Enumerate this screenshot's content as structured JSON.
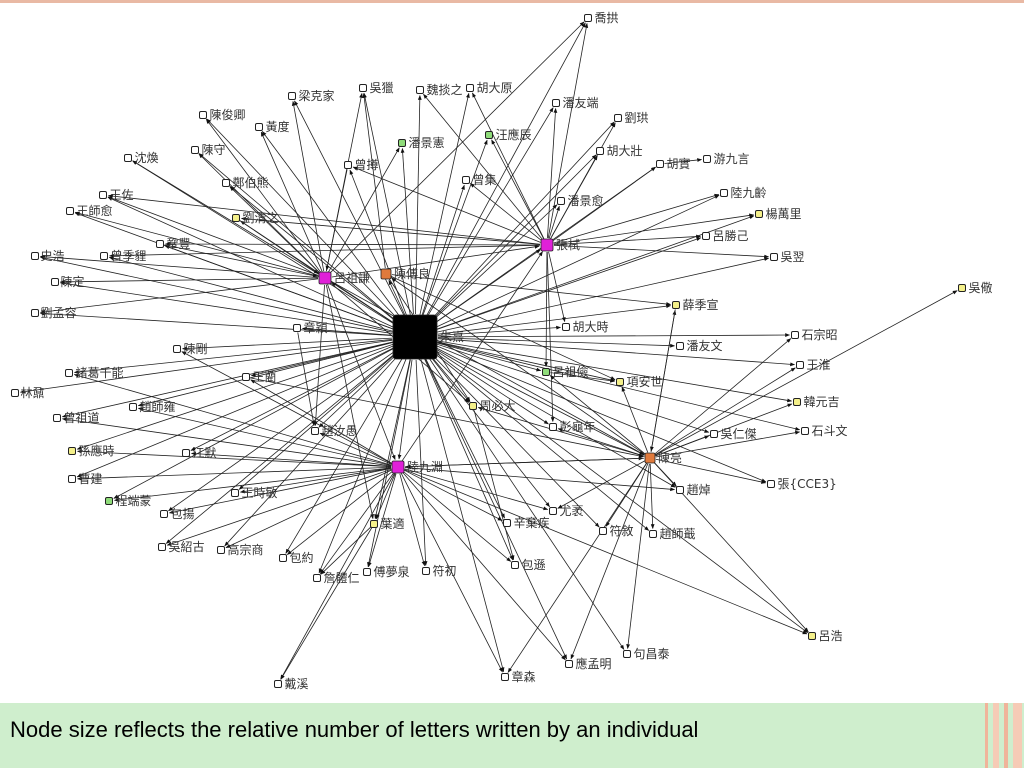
{
  "caption": "Node size reflects the relative number of letters written by an individual",
  "colors": {
    "hub": "#000000",
    "magenta": "#e020d8",
    "orange": "#e07a3c",
    "yellow": "#f4f08a",
    "green": "#8fdc7a",
    "plain": "#ffffff",
    "edge": "#222222",
    "caption_bg": "#cfeecd",
    "accent_stripe": "#f0b49a"
  },
  "nodes": [
    {
      "id": "n1",
      "label": "朱熹",
      "color": "hub",
      "size": "hub"
    },
    {
      "id": "n2",
      "label": "呂祖謙",
      "color": "magenta",
      "size": "large"
    },
    {
      "id": "n3",
      "label": "張栻",
      "color": "magenta",
      "size": "large"
    },
    {
      "id": "n4",
      "label": "陸九淵",
      "color": "magenta",
      "size": "large"
    },
    {
      "id": "n5",
      "label": "陳傅良",
      "color": "orange",
      "size": "medium"
    },
    {
      "id": "n6",
      "label": "陳亮",
      "color": "orange",
      "size": "medium"
    },
    {
      "id": "n7",
      "label": "喬拱",
      "color": "plain",
      "size": "small"
    },
    {
      "id": "n8",
      "label": "吳獵",
      "color": "plain",
      "size": "small"
    },
    {
      "id": "n9",
      "label": "魏掞之",
      "color": "plain",
      "size": "small"
    },
    {
      "id": "n10",
      "label": "胡大原",
      "color": "plain",
      "size": "small"
    },
    {
      "id": "n11",
      "label": "梁克家",
      "color": "plain",
      "size": "small"
    },
    {
      "id": "n12",
      "label": "潘友端",
      "color": "plain",
      "size": "small"
    },
    {
      "id": "n13",
      "label": "劉珙",
      "color": "plain",
      "size": "small"
    },
    {
      "id": "n14",
      "label": "陳俊卿",
      "color": "plain",
      "size": "small"
    },
    {
      "id": "n15",
      "label": "黃度",
      "color": "plain",
      "size": "small"
    },
    {
      "id": "n16",
      "label": "潘景憲",
      "color": "green",
      "size": "small"
    },
    {
      "id": "n17",
      "label": "汪應辰",
      "color": "green",
      "size": "small"
    },
    {
      "id": "n18",
      "label": "胡大壯",
      "color": "plain",
      "size": "small"
    },
    {
      "id": "n19",
      "label": "陳守",
      "color": "plain",
      "size": "small"
    },
    {
      "id": "n20",
      "label": "沈煥",
      "color": "plain",
      "size": "small"
    },
    {
      "id": "n21",
      "label": "曾撙",
      "color": "plain",
      "size": "small"
    },
    {
      "id": "n22",
      "label": "胡實",
      "color": "plain",
      "size": "small"
    },
    {
      "id": "n23",
      "label": "游九言",
      "color": "plain",
      "size": "small"
    },
    {
      "id": "n24",
      "label": "鄭伯熊",
      "color": "plain",
      "size": "small"
    },
    {
      "id": "n25",
      "label": "曾集",
      "color": "plain",
      "size": "small"
    },
    {
      "id": "n26",
      "label": "王佐",
      "color": "plain",
      "size": "small"
    },
    {
      "id": "n27",
      "label": "潘景愈",
      "color": "plain",
      "size": "small"
    },
    {
      "id": "n28",
      "label": "陸九齡",
      "color": "plain",
      "size": "small"
    },
    {
      "id": "n29",
      "label": "王師愈",
      "color": "plain",
      "size": "small"
    },
    {
      "id": "n30",
      "label": "劉清之",
      "color": "yellow",
      "size": "small"
    },
    {
      "id": "n31",
      "label": "楊萬里",
      "color": "yellow",
      "size": "small"
    },
    {
      "id": "n32",
      "label": "呂勝己",
      "color": "plain",
      "size": "small"
    },
    {
      "id": "n33",
      "label": "史浩",
      "color": "plain",
      "size": "small"
    },
    {
      "id": "n34",
      "label": "曾季貍",
      "color": "plain",
      "size": "small"
    },
    {
      "id": "n35",
      "label": "鞏豐",
      "color": "plain",
      "size": "small"
    },
    {
      "id": "n36",
      "label": "吳翌",
      "color": "plain",
      "size": "small"
    },
    {
      "id": "n37",
      "label": "陳定",
      "color": "plain",
      "size": "small"
    },
    {
      "id": "n38",
      "label": "吳儆",
      "color": "yellow",
      "size": "small"
    },
    {
      "id": "n39",
      "label": "薛季宣",
      "color": "yellow",
      "size": "small"
    },
    {
      "id": "n40",
      "label": "劉孟容",
      "color": "plain",
      "size": "small"
    },
    {
      "id": "n41",
      "label": "石宗昭",
      "color": "plain",
      "size": "small"
    },
    {
      "id": "n42",
      "label": "章穎",
      "color": "plain",
      "size": "small"
    },
    {
      "id": "n43",
      "label": "胡大時",
      "color": "plain",
      "size": "small"
    },
    {
      "id": "n44",
      "label": "陳剛",
      "color": "plain",
      "size": "small"
    },
    {
      "id": "n45",
      "label": "潘友文",
      "color": "plain",
      "size": "small"
    },
    {
      "id": "n46",
      "label": "王淮",
      "color": "plain",
      "size": "small"
    },
    {
      "id": "n47",
      "label": "諸葛千能",
      "color": "plain",
      "size": "small"
    },
    {
      "id": "n48",
      "label": "王藺",
      "color": "plain",
      "size": "small"
    },
    {
      "id": "n49",
      "label": "呂祖儉",
      "color": "green",
      "size": "small"
    },
    {
      "id": "n50",
      "label": "項安世",
      "color": "yellow",
      "size": "small"
    },
    {
      "id": "n51",
      "label": "林鼐",
      "color": "plain",
      "size": "small"
    },
    {
      "id": "n52",
      "label": "韓元吉",
      "color": "yellow",
      "size": "small"
    },
    {
      "id": "n53",
      "label": "周必大",
      "color": "yellow",
      "size": "small"
    },
    {
      "id": "n54",
      "label": "曾祖道",
      "color": "plain",
      "size": "small"
    },
    {
      "id": "n55",
      "label": "趙師雍",
      "color": "plain",
      "size": "small"
    },
    {
      "id": "n56",
      "label": "彭龜年",
      "color": "plain",
      "size": "small"
    },
    {
      "id": "n57",
      "label": "石斗文",
      "color": "plain",
      "size": "small"
    },
    {
      "id": "n58",
      "label": "趙汝愚",
      "color": "plain",
      "size": "small"
    },
    {
      "id": "n59",
      "label": "吳仁傑",
      "color": "plain",
      "size": "small"
    },
    {
      "id": "n60",
      "label": "孫應時",
      "color": "yellow",
      "size": "small"
    },
    {
      "id": "n61",
      "label": "江默",
      "color": "plain",
      "size": "small"
    },
    {
      "id": "n62",
      "label": "曹建",
      "color": "plain",
      "size": "small"
    },
    {
      "id": "n63",
      "label": "張{CCE3}",
      "color": "plain",
      "size": "small"
    },
    {
      "id": "n64",
      "label": "趙焯",
      "color": "plain",
      "size": "small"
    },
    {
      "id": "n65",
      "label": "王時敏",
      "color": "plain",
      "size": "small"
    },
    {
      "id": "n66",
      "label": "程端蒙",
      "color": "green",
      "size": "small"
    },
    {
      "id": "n67",
      "label": "尤袤",
      "color": "plain",
      "size": "small"
    },
    {
      "id": "n68",
      "label": "包揚",
      "color": "plain",
      "size": "small"
    },
    {
      "id": "n69",
      "label": "葉適",
      "color": "yellow",
      "size": "small"
    },
    {
      "id": "n70",
      "label": "辛棄疾",
      "color": "plain",
      "size": "small"
    },
    {
      "id": "n71",
      "label": "符敘",
      "color": "plain",
      "size": "small"
    },
    {
      "id": "n72",
      "label": "趙師蕺",
      "color": "plain",
      "size": "small"
    },
    {
      "id": "n73",
      "label": "吳紹古",
      "color": "plain",
      "size": "small"
    },
    {
      "id": "n74",
      "label": "高宗商",
      "color": "plain",
      "size": "small"
    },
    {
      "id": "n75",
      "label": "包約",
      "color": "plain",
      "size": "small"
    },
    {
      "id": "n76",
      "label": "傅夢泉",
      "color": "plain",
      "size": "small"
    },
    {
      "id": "n77",
      "label": "符初",
      "color": "plain",
      "size": "small"
    },
    {
      "id": "n78",
      "label": "包遜",
      "color": "plain",
      "size": "small"
    },
    {
      "id": "n79",
      "label": "詹體仁",
      "color": "plain",
      "size": "small"
    },
    {
      "id": "n80",
      "label": "呂浩",
      "color": "yellow",
      "size": "small"
    },
    {
      "id": "n81",
      "label": "句昌泰",
      "color": "plain",
      "size": "small"
    },
    {
      "id": "n82",
      "label": "應孟明",
      "color": "plain",
      "size": "small"
    },
    {
      "id": "n83",
      "label": "章森",
      "color": "plain",
      "size": "small"
    },
    {
      "id": "n84",
      "label": "戴溪",
      "color": "plain",
      "size": "small"
    }
  ],
  "edges": [
    [
      "n1",
      "n7"
    ],
    [
      "n1",
      "n8"
    ],
    [
      "n1",
      "n9"
    ],
    [
      "n1",
      "n10"
    ],
    [
      "n1",
      "n11"
    ],
    [
      "n1",
      "n12"
    ],
    [
      "n1",
      "n13"
    ],
    [
      "n1",
      "n14"
    ],
    [
      "n1",
      "n15"
    ],
    [
      "n1",
      "n16"
    ],
    [
      "n1",
      "n17"
    ],
    [
      "n1",
      "n18"
    ],
    [
      "n1",
      "n19"
    ],
    [
      "n1",
      "n20"
    ],
    [
      "n1",
      "n21"
    ],
    [
      "n1",
      "n22"
    ],
    [
      "n1",
      "n24"
    ],
    [
      "n1",
      "n25"
    ],
    [
      "n1",
      "n26"
    ],
    [
      "n1",
      "n27"
    ],
    [
      "n1",
      "n28"
    ],
    [
      "n1",
      "n29"
    ],
    [
      "n1",
      "n30"
    ],
    [
      "n1",
      "n31"
    ],
    [
      "n1",
      "n32"
    ],
    [
      "n1",
      "n33"
    ],
    [
      "n1",
      "n34"
    ],
    [
      "n1",
      "n35"
    ],
    [
      "n1",
      "n36"
    ],
    [
      "n1",
      "n37"
    ],
    [
      "n1",
      "n39"
    ],
    [
      "n1",
      "n40"
    ],
    [
      "n1",
      "n41"
    ],
    [
      "n1",
      "n42"
    ],
    [
      "n1",
      "n43"
    ],
    [
      "n1",
      "n44"
    ],
    [
      "n1",
      "n45"
    ],
    [
      "n1",
      "n46"
    ],
    [
      "n1",
      "n47"
    ],
    [
      "n1",
      "n48"
    ],
    [
      "n1",
      "n49"
    ],
    [
      "n1",
      "n50"
    ],
    [
      "n1",
      "n51"
    ],
    [
      "n1",
      "n52"
    ],
    [
      "n1",
      "n53"
    ],
    [
      "n1",
      "n54"
    ],
    [
      "n1",
      "n55"
    ],
    [
      "n1",
      "n56"
    ],
    [
      "n1",
      "n57"
    ],
    [
      "n1",
      "n58"
    ],
    [
      "n1",
      "n59"
    ],
    [
      "n1",
      "n60"
    ],
    [
      "n1",
      "n61"
    ],
    [
      "n1",
      "n62"
    ],
    [
      "n1",
      "n63"
    ],
    [
      "n1",
      "n64"
    ],
    [
      "n1",
      "n65"
    ],
    [
      "n1",
      "n66"
    ],
    [
      "n1",
      "n67"
    ],
    [
      "n1",
      "n68"
    ],
    [
      "n1",
      "n69"
    ],
    [
      "n1",
      "n70"
    ],
    [
      "n1",
      "n71"
    ],
    [
      "n1",
      "n72"
    ],
    [
      "n1",
      "n73"
    ],
    [
      "n1",
      "n74"
    ],
    [
      "n1",
      "n75"
    ],
    [
      "n1",
      "n76"
    ],
    [
      "n1",
      "n77"
    ],
    [
      "n1",
      "n78"
    ],
    [
      "n1",
      "n79"
    ],
    [
      "n1",
      "n80"
    ],
    [
      "n1",
      "n81"
    ],
    [
      "n1",
      "n82"
    ],
    [
      "n1",
      "n83"
    ],
    [
      "n1",
      "n2"
    ],
    [
      "n1",
      "n3"
    ],
    [
      "n1",
      "n4"
    ],
    [
      "n1",
      "n5"
    ],
    [
      "n1",
      "n6"
    ],
    [
      "n2",
      "n8"
    ],
    [
      "n2",
      "n11"
    ],
    [
      "n2",
      "n14"
    ],
    [
      "n2",
      "n15"
    ],
    [
      "n2",
      "n19"
    ],
    [
      "n2",
      "n20"
    ],
    [
      "n2",
      "n24"
    ],
    [
      "n2",
      "n26"
    ],
    [
      "n2",
      "n29"
    ],
    [
      "n2",
      "n33"
    ],
    [
      "n2",
      "n37"
    ],
    [
      "n2",
      "n40"
    ],
    [
      "n2",
      "n16"
    ],
    [
      "n2",
      "n4"
    ],
    [
      "n2",
      "n3"
    ],
    [
      "n2",
      "n6"
    ],
    [
      "n2",
      "n58"
    ],
    [
      "n2",
      "n69"
    ],
    [
      "n2",
      "n53"
    ],
    [
      "n2",
      "n7"
    ],
    [
      "n3",
      "n12"
    ],
    [
      "n3",
      "n13"
    ],
    [
      "n3",
      "n17"
    ],
    [
      "n3",
      "n18"
    ],
    [
      "n3",
      "n22"
    ],
    [
      "n3",
      "n27"
    ],
    [
      "n3",
      "n28"
    ],
    [
      "n3",
      "n31"
    ],
    [
      "n3",
      "n32"
    ],
    [
      "n3",
      "n36"
    ],
    [
      "n3",
      "n43"
    ],
    [
      "n3",
      "n49"
    ],
    [
      "n3",
      "n9"
    ],
    [
      "n3",
      "n10"
    ],
    [
      "n3",
      "n25"
    ],
    [
      "n3",
      "n21"
    ],
    [
      "n3",
      "n35"
    ],
    [
      "n3",
      "n34"
    ],
    [
      "n3",
      "n26"
    ],
    [
      "n3",
      "n30"
    ],
    [
      "n3",
      "n56"
    ],
    [
      "n3",
      "n7"
    ],
    [
      "n4",
      "n60"
    ],
    [
      "n4",
      "n61"
    ],
    [
      "n4",
      "n62"
    ],
    [
      "n4",
      "n65"
    ],
    [
      "n4",
      "n66"
    ],
    [
      "n4",
      "n68"
    ],
    [
      "n4",
      "n69"
    ],
    [
      "n4",
      "n73"
    ],
    [
      "n4",
      "n74"
    ],
    [
      "n4",
      "n75"
    ],
    [
      "n4",
      "n76"
    ],
    [
      "n4",
      "n77"
    ],
    [
      "n4",
      "n78"
    ],
    [
      "n4",
      "n79"
    ],
    [
      "n4",
      "n82"
    ],
    [
      "n4",
      "n83"
    ],
    [
      "n4",
      "n70"
    ],
    [
      "n4",
      "n67"
    ],
    [
      "n4",
      "n64"
    ],
    [
      "n4",
      "n44"
    ],
    [
      "n4",
      "n47"
    ],
    [
      "n4",
      "n54"
    ],
    [
      "n4",
      "n55"
    ],
    [
      "n4",
      "n58"
    ],
    [
      "n4",
      "n3"
    ],
    [
      "n4",
      "n6"
    ],
    [
      "n4",
      "n80"
    ],
    [
      "n4",
      "n84"
    ],
    [
      "n4",
      "n48"
    ],
    [
      "n6",
      "n38"
    ],
    [
      "n6",
      "n41"
    ],
    [
      "n6",
      "n46"
    ],
    [
      "n6",
      "n52"
    ],
    [
      "n6",
      "n57"
    ],
    [
      "n6",
      "n59"
    ],
    [
      "n6",
      "n63"
    ],
    [
      "n6",
      "n64"
    ],
    [
      "n6",
      "n71"
    ],
    [
      "n6",
      "n72"
    ],
    [
      "n6",
      "n67"
    ],
    [
      "n6",
      "n80"
    ],
    [
      "n6",
      "n81"
    ],
    [
      "n6",
      "n82"
    ],
    [
      "n6",
      "n83"
    ],
    [
      "n6",
      "n39"
    ],
    [
      "n6",
      "n56"
    ],
    [
      "n6",
      "n50"
    ],
    [
      "n6",
      "n49"
    ],
    [
      "n6",
      "n53"
    ],
    [
      "n6",
      "n4"
    ],
    [
      "n6",
      "n5"
    ],
    [
      "n5",
      "n39"
    ],
    [
      "n5",
      "n50"
    ],
    [
      "n5",
      "n8"
    ],
    [
      "n5",
      "n53"
    ],
    [
      "n22",
      "n23"
    ],
    [
      "n49",
      "n50"
    ],
    [
      "n69",
      "n79"
    ],
    [
      "n69",
      "n84"
    ],
    [
      "n53",
      "n78"
    ],
    [
      "n39",
      "n6"
    ],
    [
      "n48",
      "n6"
    ],
    [
      "n42",
      "n58"
    ],
    [
      "n30",
      "n2"
    ],
    [
      "n21",
      "n2"
    ],
    [
      "n35",
      "n2"
    ]
  ]
}
